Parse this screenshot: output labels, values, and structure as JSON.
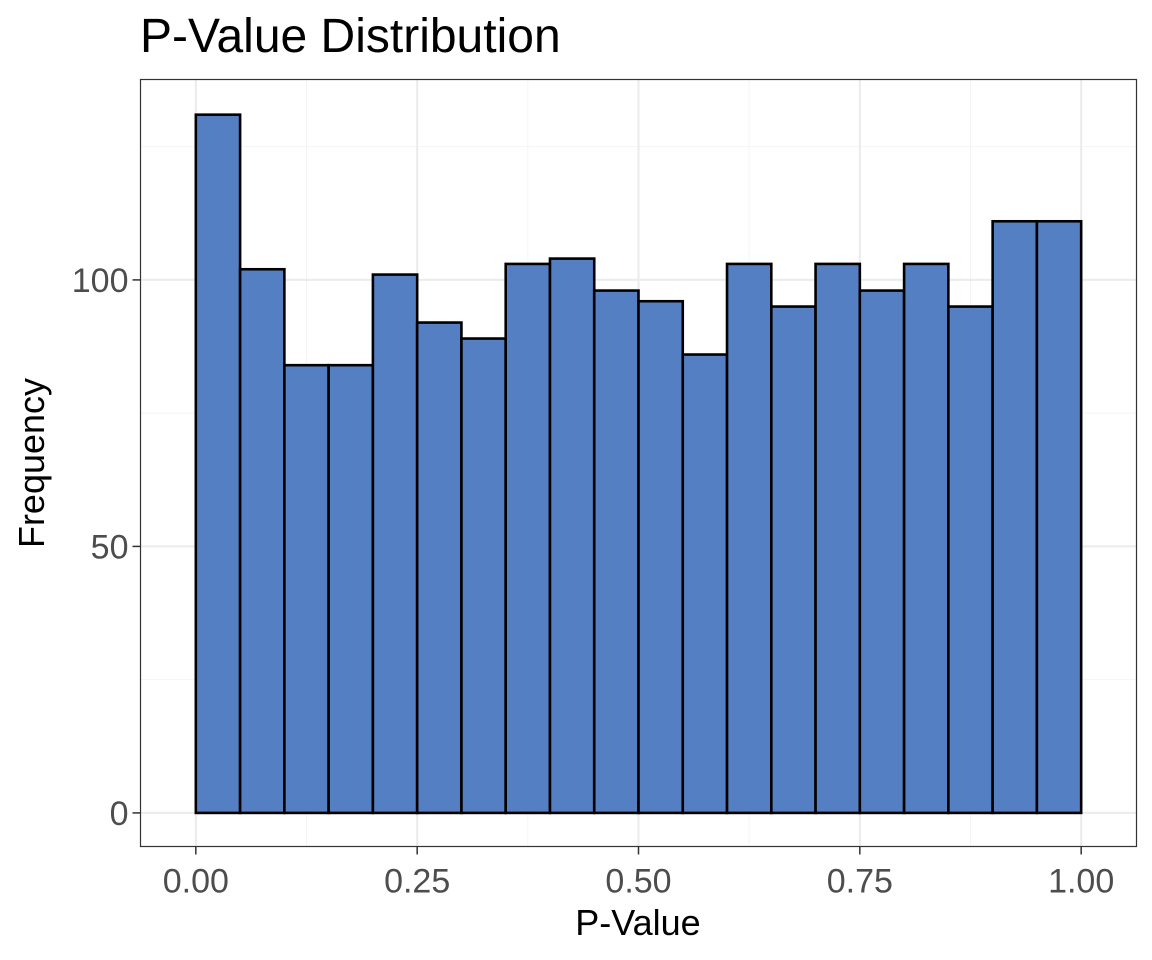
{
  "chart_data": {
    "type": "bar",
    "title": "P-Value Distribution",
    "xlabel": "P-Value",
    "ylabel": "Frequency",
    "bin_edges": [
      0.0,
      0.05,
      0.1,
      0.15,
      0.2,
      0.25,
      0.3,
      0.35,
      0.4,
      0.45,
      0.5,
      0.55,
      0.6,
      0.65,
      0.7,
      0.75,
      0.8,
      0.85,
      0.9,
      0.95,
      1.0
    ],
    "values": [
      131,
      102,
      84,
      84,
      101,
      92,
      89,
      103,
      104,
      98,
      96,
      86,
      103,
      95,
      103,
      98,
      103,
      95,
      111,
      111
    ],
    "xlim": [
      -0.0625,
      1.0625
    ],
    "ylim": [
      -6.3,
      137.6
    ],
    "x_ticks": [
      0,
      0.25,
      0.5,
      0.75,
      1.0
    ],
    "x_tick_labels": [
      "0.00",
      "0.25",
      "0.50",
      "0.75",
      "1.00"
    ],
    "y_ticks": [
      0,
      50,
      100
    ],
    "y_tick_labels": [
      "0",
      "50",
      "100"
    ],
    "grid": true,
    "colors": {
      "bar_fill": "#557fc3",
      "bar_stroke": "#000000",
      "grid_major": "#ebebeb",
      "grid_minor": "#f4f4f4",
      "panel_border": "#333333",
      "tick_text": "#4d4d4d"
    }
  }
}
